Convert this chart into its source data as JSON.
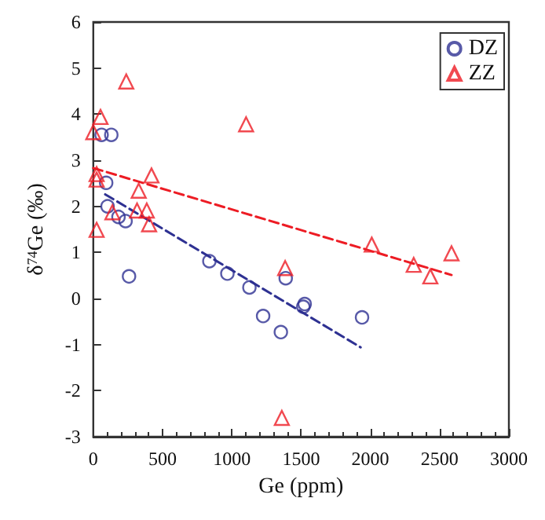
{
  "chart_data": {
    "type": "scatter",
    "xlabel": "Ge (ppm)",
    "ylabel": "δ$^{74}$Ge (‰)",
    "xlim": [
      0,
      3000
    ],
    "xticks": [
      0,
      500,
      1000,
      1500,
      2000,
      2500,
      3000
    ],
    "ylim": [
      -3,
      6
    ],
    "yticks": [
      -3,
      -2,
      -1,
      0,
      1,
      2,
      3,
      4,
      5,
      6
    ],
    "legend": "top right",
    "series": [
      {
        "name": "DZ",
        "type": "scatter",
        "marker": "circle",
        "color": "#2e3192",
        "x": [
          60,
          130,
          93,
          103,
          182,
          233,
          258,
          838,
          968,
          1127,
          1226,
          1354,
          1389,
          1516,
          1526,
          1940
        ],
        "values": [
          3.55,
          3.55,
          2.51,
          2.0,
          1.77,
          1.68,
          0.48,
          0.81,
          0.54,
          0.24,
          -0.38,
          -0.73,
          0.44,
          -0.18,
          -0.12,
          -0.41
        ]
      },
      {
        "name": "ZZ",
        "type": "scatter",
        "marker": "triangle",
        "color": "#ed1c24",
        "x": [
          0,
          52,
          238,
          1103,
          24,
          24,
          24,
          420,
          328,
          138,
          316,
          386,
          403,
          1385,
          1361,
          2010,
          2313,
          2433,
          2586
        ],
        "values": [
          3.61,
          3.94,
          4.71,
          3.78,
          2.7,
          2.58,
          1.49,
          2.67,
          2.34,
          1.87,
          1.91,
          1.91,
          1.61,
          0.66,
          -2.59,
          1.17,
          0.73,
          0.48,
          0.98
        ]
      },
      {
        "type": "line",
        "marker": "none",
        "line_style": "dashed",
        "color": "#2e3192",
        "x": [
          86,
          1930
        ],
        "values": [
          2.26,
          -1.06
        ]
      },
      {
        "type": "line",
        "marker": "none",
        "line_style": "dashed",
        "color": "#ed1c24",
        "x": [
          0,
          2586
        ],
        "values": [
          2.83,
          0.51
        ]
      }
    ]
  }
}
